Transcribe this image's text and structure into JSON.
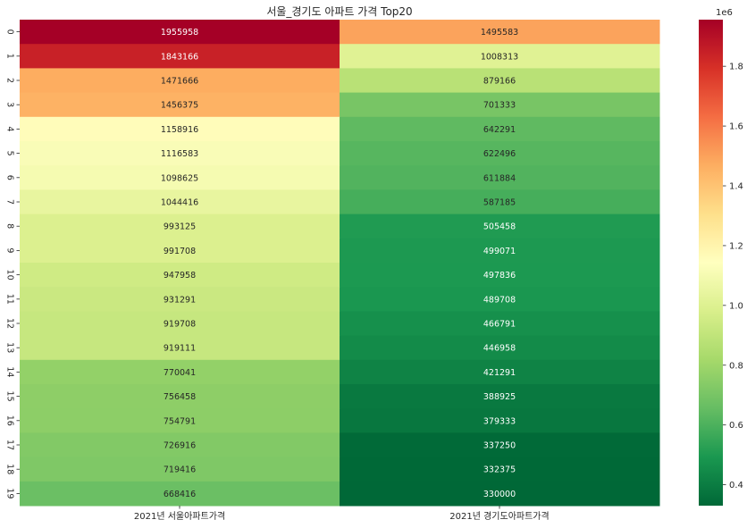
{
  "chart_data": {
    "type": "heatmap",
    "title": "서울_경기도 아파트 가격 Top20",
    "columns": [
      "2021년 서울아파트가격",
      "2021년 경기도아파트가격"
    ],
    "rows": [
      "0",
      "1",
      "2",
      "3",
      "4",
      "5",
      "6",
      "7",
      "8",
      "9",
      "10",
      "11",
      "12",
      "13",
      "14",
      "15",
      "16",
      "17",
      "18",
      "19"
    ],
    "values": [
      [
        1955958,
        1495583
      ],
      [
        1843166,
        1008313
      ],
      [
        1471666,
        879166
      ],
      [
        1456375,
        701333
      ],
      [
        1158916,
        642291
      ],
      [
        1116583,
        622496
      ],
      [
        1098625,
        611884
      ],
      [
        1044416,
        587185
      ],
      [
        993125,
        505458
      ],
      [
        991708,
        499071
      ],
      [
        947958,
        497836
      ],
      [
        931291,
        489708
      ],
      [
        919708,
        466791
      ],
      [
        919111,
        446958
      ],
      [
        770041,
        421291
      ],
      [
        756458,
        388925
      ],
      [
        754791,
        379333
      ],
      [
        726916,
        337250
      ],
      [
        719416,
        332375
      ],
      [
        668416,
        330000
      ]
    ],
    "colormap": "RdYlGn_r",
    "colorbar": {
      "min": 330000,
      "max": 1955958,
      "ticks": [
        0.4,
        0.6,
        0.8,
        1.0,
        1.2,
        1.4,
        1.6,
        1.8
      ],
      "tick_labels": [
        "0.4",
        "0.6",
        "0.8",
        "1.0",
        "1.2",
        "1.4",
        "1.6",
        "1.8"
      ],
      "offset_label": "1e6"
    },
    "annotations": true
  }
}
